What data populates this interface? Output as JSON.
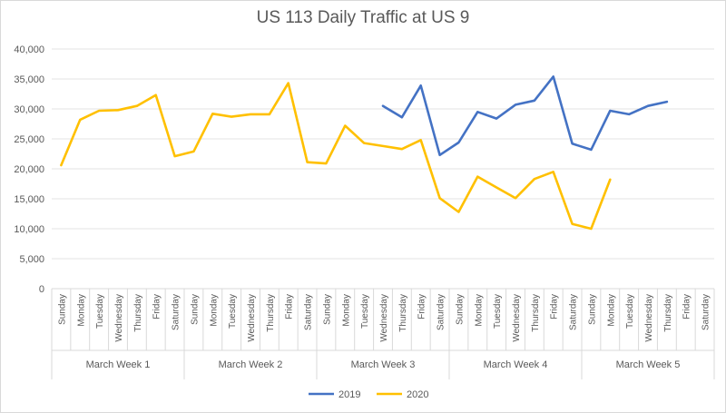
{
  "chart_data": {
    "type": "line",
    "title": "US 113 Daily Traffic at US 9",
    "xlabel": "",
    "ylabel": "",
    "ylim": [
      0,
      40000
    ],
    "yticks": [
      "0",
      "5,000",
      "10,000",
      "15,000",
      "20,000",
      "25,000",
      "30,000",
      "35,000",
      "40,000"
    ],
    "grid": true,
    "legend_position": "bottom",
    "colors": {
      "2019": "#4472c4",
      "2020": "#ffc000"
    },
    "groups": [
      {
        "label": "March Week 1",
        "days": [
          "Sunday",
          "Monday",
          "Tuesday",
          "Wednesday",
          "Thursday",
          "Friday",
          "Saturday"
        ]
      },
      {
        "label": "March Week 2",
        "days": [
          "Sunday",
          "Monday",
          "Tuesday",
          "Wednesday",
          "Thursday",
          "Friday",
          "Saturday"
        ]
      },
      {
        "label": "March Week 3",
        "days": [
          "Sunday",
          "Monday",
          "Tuesday",
          "Wednesday",
          "Thursday",
          "Friday",
          "Saturday"
        ]
      },
      {
        "label": "March Week 4",
        "days": [
          "Sunday",
          "Monday",
          "Tuesday",
          "Wednesday",
          "Thursday",
          "Friday",
          "Saturday"
        ]
      },
      {
        "label": "March Week 5",
        "days": [
          "Sunday",
          "Monday",
          "Tuesday",
          "Wednesday",
          "Thursday",
          "Friday",
          "Saturday"
        ]
      }
    ],
    "series": [
      {
        "name": "2019",
        "color": "#4472c4",
        "values": [
          null,
          null,
          null,
          null,
          null,
          null,
          null,
          null,
          null,
          null,
          null,
          null,
          null,
          null,
          null,
          null,
          null,
          30500,
          28600,
          33900,
          22300,
          24400,
          29500,
          28400,
          30700,
          31400,
          35400,
          24200,
          23200,
          29700,
          29100,
          30500,
          31200,
          null,
          null
        ]
      },
      {
        "name": "2020",
        "color": "#ffc000",
        "values": [
          20600,
          28200,
          29700,
          29800,
          30500,
          32300,
          22100,
          22900,
          29200,
          28700,
          29100,
          29100,
          34300,
          21100,
          20900,
          27200,
          24300,
          23800,
          23300,
          24800,
          15100,
          12800,
          18700,
          16900,
          15100,
          18300,
          19500,
          10800,
          10000,
          18200,
          null,
          null,
          null,
          null,
          null
        ]
      }
    ]
  }
}
